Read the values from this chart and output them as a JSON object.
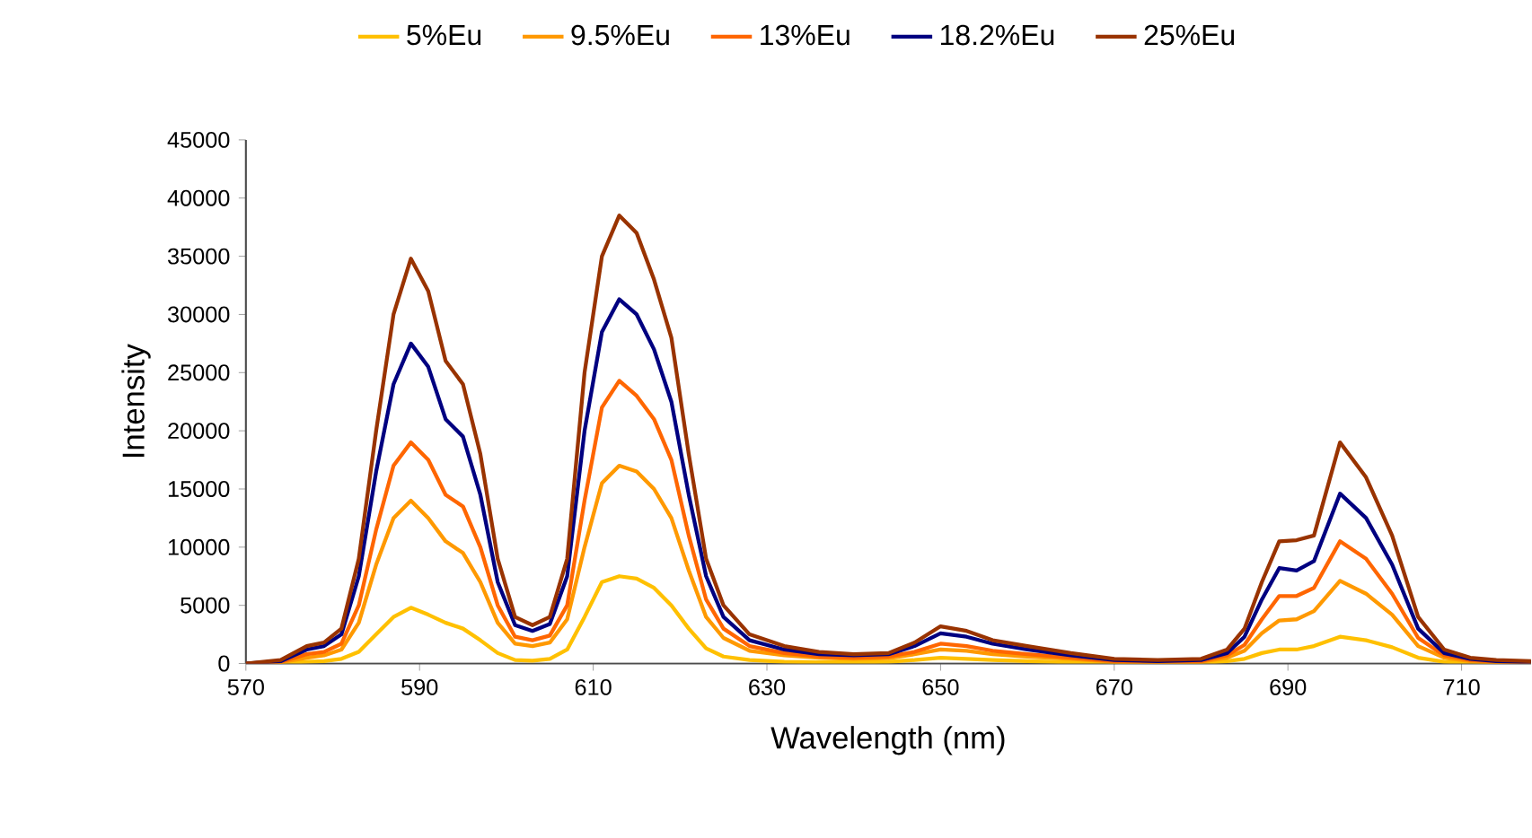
{
  "chart_data": {
    "type": "line",
    "xlabel": "Wavelength (nm)",
    "ylabel": "Intensity",
    "x": [
      570,
      574,
      577,
      579,
      581,
      583,
      585,
      587,
      589,
      591,
      593,
      595,
      597,
      599,
      601,
      603,
      605,
      607,
      609,
      611,
      613,
      615,
      617,
      619,
      621,
      623,
      625,
      628,
      632,
      636,
      640,
      644,
      647,
      650,
      653,
      656,
      660,
      665,
      670,
      675,
      680,
      683,
      685,
      687,
      689,
      691,
      693,
      696,
      699,
      702,
      705,
      708,
      711,
      714,
      718
    ],
    "series": [
      {
        "name": "5%Eu",
        "color": "#ffc000",
        "values": [
          0,
          50,
          150,
          200,
          400,
          1000,
          2500,
          4000,
          4800,
          4200,
          3500,
          3000,
          2000,
          900,
          300,
          250,
          400,
          1200,
          4000,
          7000,
          7500,
          7300,
          6500,
          5000,
          3000,
          1300,
          600,
          300,
          150,
          100,
          100,
          150,
          300,
          500,
          400,
          300,
          200,
          100,
          50,
          50,
          50,
          200,
          400,
          900,
          1200,
          1200,
          1500,
          2300,
          2000,
          1400,
          500,
          150,
          50,
          30,
          20
        ]
      },
      {
        "name": "9.5%Eu",
        "color": "#ff9900",
        "values": [
          0,
          100,
          500,
          700,
          1200,
          3500,
          8500,
          12500,
          14000,
          12500,
          10500,
          9500,
          7000,
          3500,
          1700,
          1500,
          1800,
          3800,
          10000,
          15500,
          17000,
          16500,
          15000,
          12500,
          8000,
          4000,
          2200,
          1100,
          700,
          500,
          400,
          450,
          800,
          1200,
          1100,
          800,
          600,
          400,
          150,
          100,
          150,
          500,
          1100,
          2600,
          3700,
          3800,
          4500,
          7100,
          6000,
          4200,
          1500,
          500,
          200,
          100,
          50
        ]
      },
      {
        "name": "13%Eu",
        "color": "#ff6600",
        "values": [
          0,
          150,
          800,
          1000,
          1700,
          5000,
          11500,
          17000,
          19000,
          17500,
          14500,
          13500,
          10000,
          5000,
          2300,
          2000,
          2400,
          5000,
          14000,
          22000,
          24300,
          23000,
          21000,
          17500,
          11000,
          5500,
          3000,
          1500,
          900,
          600,
          500,
          600,
          1000,
          1700,
          1500,
          1100,
          800,
          500,
          200,
          150,
          200,
          700,
          1600,
          3800,
          5800,
          5800,
          6500,
          10500,
          9000,
          6000,
          2200,
          700,
          300,
          150,
          100
        ]
      },
      {
        "name": "18.2%Eu",
        "color": "#000080",
        "values": [
          0,
          200,
          1200,
          1500,
          2500,
          7500,
          16500,
          24000,
          27500,
          25500,
          21000,
          19500,
          14500,
          7000,
          3300,
          2800,
          3400,
          7500,
          20000,
          28500,
          31300,
          30000,
          27000,
          22500,
          14500,
          7500,
          4000,
          2000,
          1200,
          800,
          700,
          800,
          1500,
          2600,
          2300,
          1700,
          1200,
          700,
          300,
          200,
          300,
          900,
          2300,
          5500,
          8200,
          8000,
          8800,
          14600,
          12500,
          8500,
          3000,
          900,
          400,
          200,
          100
        ]
      },
      {
        "name": "25%Eu",
        "color": "#993300",
        "values": [
          0,
          300,
          1500,
          1800,
          3000,
          9000,
          20000,
          30000,
          34800,
          32000,
          26000,
          24000,
          18000,
          9000,
          4000,
          3300,
          4000,
          9000,
          25000,
          35000,
          38500,
          37000,
          33000,
          28000,
          18000,
          9000,
          5000,
          2500,
          1500,
          1000,
          800,
          900,
          1800,
          3200,
          2800,
          2000,
          1500,
          900,
          400,
          300,
          400,
          1200,
          3000,
          7000,
          10500,
          10600,
          11000,
          19000,
          16000,
          11000,
          4000,
          1200,
          500,
          300,
          200
        ]
      }
    ],
    "xlim": [
      570,
      718
    ],
    "xticks": [
      570,
      590,
      610,
      630,
      650,
      670,
      690,
      710
    ],
    "ylim": [
      0,
      45000
    ],
    "yticks": [
      0,
      5000,
      10000,
      15000,
      20000,
      25000,
      30000,
      35000,
      40000,
      45000
    ],
    "grid": false,
    "legend": "top",
    "marker": "none",
    "line_style": "solid"
  }
}
